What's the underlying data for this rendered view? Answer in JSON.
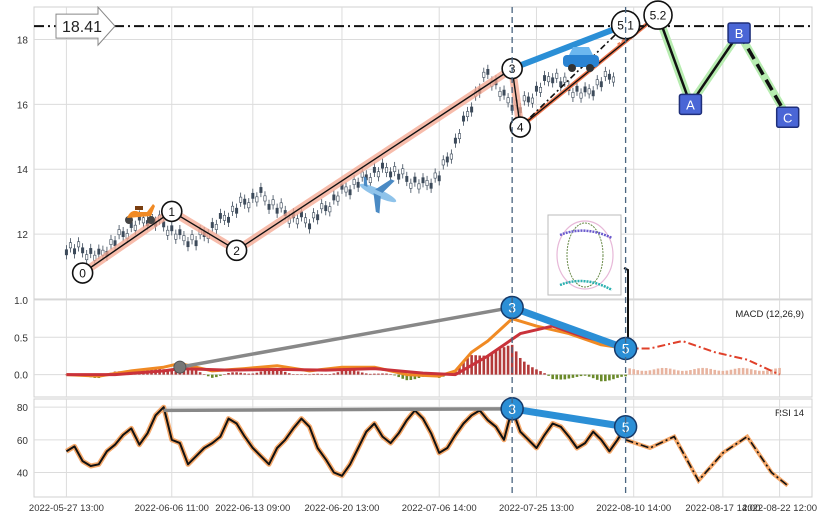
{
  "chart_data": {
    "type": "line",
    "panels": [
      {
        "id": "price",
        "ylim": [
          10,
          19
        ],
        "yticks": [
          12,
          14,
          16,
          18
        ],
        "hline": {
          "value": 18.41,
          "label": "18.41"
        },
        "candles": {
          "approx_close": [
            [
              0,
              11.6
            ],
            [
              2,
              11.5
            ],
            [
              4,
              11.3
            ],
            [
              6,
              11.8
            ],
            [
              8,
              12.2
            ],
            [
              10,
              12.5
            ],
            [
              12,
              12.3
            ],
            [
              14,
              11.9
            ],
            [
              16,
              11.8
            ],
            [
              18,
              12.2
            ],
            [
              20,
              12.6
            ],
            [
              22,
              13.0
            ],
            [
              24,
              13.2
            ],
            [
              26,
              12.8
            ],
            [
              28,
              12.5
            ],
            [
              30,
              12.4
            ],
            [
              32,
              12.8
            ],
            [
              34,
              13.3
            ],
            [
              36,
              13.6
            ],
            [
              38,
              13.9
            ],
            [
              40,
              14.0
            ],
            [
              42,
              13.7
            ],
            [
              44,
              13.5
            ],
            [
              46,
              13.8
            ],
            [
              48,
              14.8
            ],
            [
              50,
              16.0
            ],
            [
              52,
              17.0
            ],
            [
              54,
              16.2
            ],
            [
              56,
              15.9
            ],
            [
              58,
              16.4
            ],
            [
              60,
              16.9
            ],
            [
              62,
              16.5
            ],
            [
              64,
              16.3
            ],
            [
              66,
              16.7
            ],
            [
              68,
              17.0
            ]
          ]
        },
        "waves": [
          {
            "label": "0",
            "x": 2,
            "y": 10.8
          },
          {
            "label": "1",
            "x": 13,
            "y": 12.7
          },
          {
            "label": "2",
            "x": 21,
            "y": 11.5
          },
          {
            "label": "3",
            "x": 55,
            "y": 17.1
          },
          {
            "label": "4",
            "x": 56,
            "y": 15.3
          },
          {
            "label": "5.1",
            "x": 69,
            "y": 18.45
          },
          {
            "label": "5.2",
            "x": 73,
            "y": 18.75
          }
        ],
        "projection": [
          {
            "label": "A",
            "x": 77,
            "y": 16.0
          },
          {
            "label": "B",
            "x": 83,
            "y": 18.2
          },
          {
            "label": "C",
            "x": 89,
            "y": 15.6
          }
        ]
      },
      {
        "id": "macd",
        "title": "MACD (12,26,9)",
        "ylim": [
          -0.3,
          1.0
        ],
        "yticks": [
          "0.0",
          "0.5",
          "1.0"
        ],
        "divergence": [
          {
            "label": "3",
            "x": 55,
            "y": 0.9
          },
          {
            "label": "5",
            "x": 69,
            "y": 0.35
          }
        ],
        "macd": [
          [
            0,
            0.0
          ],
          [
            4,
            -0.02
          ],
          [
            8,
            0.05
          ],
          [
            12,
            0.1
          ],
          [
            14,
            0.15
          ],
          [
            18,
            0.05
          ],
          [
            22,
            0.08
          ],
          [
            26,
            0.12
          ],
          [
            30,
            0.05
          ],
          [
            34,
            0.1
          ],
          [
            38,
            0.1
          ],
          [
            42,
            0.0
          ],
          [
            46,
            -0.02
          ],
          [
            48,
            0.05
          ],
          [
            50,
            0.3
          ],
          [
            52,
            0.45
          ],
          [
            55,
            0.75
          ],
          [
            58,
            0.65
          ],
          [
            62,
            0.55
          ],
          [
            66,
            0.4
          ],
          [
            69,
            0.35
          ],
          [
            72,
            0.35
          ],
          [
            76,
            0.45
          ],
          [
            80,
            0.3
          ],
          [
            84,
            0.2
          ],
          [
            88,
            0.0
          ]
        ],
        "signal": [
          [
            0,
            0.0
          ],
          [
            6,
            0.0
          ],
          [
            12,
            0.05
          ],
          [
            14,
            0.08
          ],
          [
            20,
            0.06
          ],
          [
            26,
            0.07
          ],
          [
            32,
            0.06
          ],
          [
            38,
            0.08
          ],
          [
            44,
            0.02
          ],
          [
            48,
            0.0
          ],
          [
            52,
            0.25
          ],
          [
            56,
            0.55
          ],
          [
            60,
            0.65
          ],
          [
            64,
            0.5
          ],
          [
            69,
            0.38
          ]
        ]
      },
      {
        "id": "rsi",
        "title": "RSI 14",
        "ylim": [
          25,
          85
        ],
        "yticks": [
          "40",
          "60",
          "80"
        ],
        "divergence": [
          {
            "label": "3",
            "x": 55,
            "y": 79
          },
          {
            "label": "5",
            "x": 69,
            "y": 68
          }
        ],
        "rsi": [
          [
            0,
            53
          ],
          [
            1,
            56
          ],
          [
            2,
            47
          ],
          [
            3,
            44
          ],
          [
            4,
            45
          ],
          [
            5,
            53
          ],
          [
            6,
            57
          ],
          [
            7,
            63
          ],
          [
            8,
            67
          ],
          [
            9,
            57
          ],
          [
            10,
            64
          ],
          [
            11,
            75
          ],
          [
            12,
            80
          ],
          [
            13,
            60
          ],
          [
            14,
            58
          ],
          [
            15,
            45
          ],
          [
            16,
            50
          ],
          [
            17,
            55
          ],
          [
            18,
            58
          ],
          [
            19,
            62
          ],
          [
            20,
            73
          ],
          [
            21,
            70
          ],
          [
            22,
            62
          ],
          [
            23,
            55
          ],
          [
            24,
            50
          ],
          [
            25,
            45
          ],
          [
            26,
            55
          ],
          [
            27,
            60
          ],
          [
            28,
            67
          ],
          [
            29,
            73
          ],
          [
            30,
            68
          ],
          [
            31,
            55
          ],
          [
            32,
            48
          ],
          [
            33,
            40
          ],
          [
            34,
            38
          ],
          [
            35,
            45
          ],
          [
            36,
            55
          ],
          [
            37,
            65
          ],
          [
            38,
            70
          ],
          [
            39,
            62
          ],
          [
            40,
            58
          ],
          [
            41,
            64
          ],
          [
            42,
            72
          ],
          [
            43,
            78
          ],
          [
            44,
            73
          ],
          [
            45,
            64
          ],
          [
            46,
            52
          ],
          [
            47,
            55
          ],
          [
            48,
            63
          ],
          [
            49,
            70
          ],
          [
            50,
            75
          ],
          [
            51,
            78
          ],
          [
            52,
            72
          ],
          [
            53,
            68
          ],
          [
            54,
            60
          ],
          [
            55,
            79
          ],
          [
            56,
            65
          ],
          [
            57,
            60
          ],
          [
            58,
            55
          ],
          [
            59,
            63
          ],
          [
            60,
            70
          ],
          [
            61,
            68
          ],
          [
            62,
            62
          ],
          [
            63,
            55
          ],
          [
            64,
            58
          ],
          [
            65,
            65
          ],
          [
            66,
            60
          ],
          [
            67,
            53
          ],
          [
            68,
            60
          ],
          [
            69,
            68
          ]
        ],
        "rsi_projection": [
          [
            69,
            60
          ],
          [
            72,
            55
          ],
          [
            75,
            62
          ],
          [
            78,
            35
          ],
          [
            81,
            52
          ],
          [
            84,
            62
          ],
          [
            87,
            40
          ],
          [
            89,
            32
          ]
        ]
      }
    ],
    "x_tick_labels": [
      "2022-05-27 13:00",
      "2022-06-06 11:00",
      "2022-06-13 09:00",
      "2022-06-20 13:00",
      "2022-07-06 14:00",
      "2022-07-25 13:00",
      "2022-08-10 14:00",
      "2022-08-17 14:00",
      "2022-08-22 12:00"
    ],
    "xlim": [
      -4,
      92
    ],
    "vlines": [
      55,
      69
    ],
    "grid": true
  }
}
